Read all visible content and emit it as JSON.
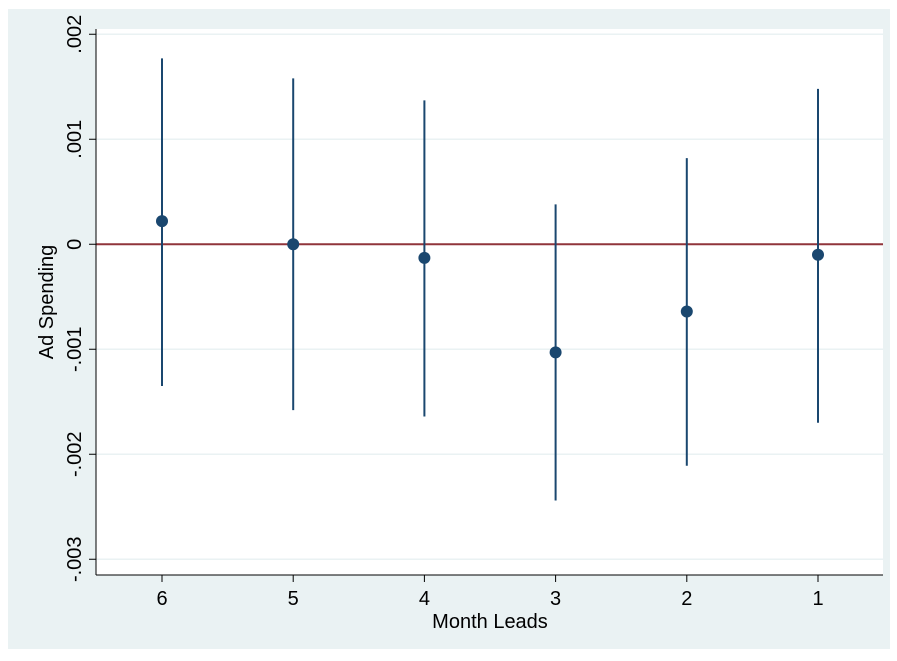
{
  "chart_data": {
    "type": "scatter",
    "subtype": "coefficient-plot-with-error-bars",
    "title": "",
    "xlabel": "Month Leads",
    "ylabel": "Ad Spending",
    "categories": [
      "6",
      "5",
      "4",
      "3",
      "2",
      "1"
    ],
    "y_ticks": [
      -0.003,
      -0.002,
      -0.001,
      0,
      0.001,
      0.002
    ],
    "y_tick_labels": [
      "-.003",
      "-.002",
      "-.001",
      "0",
      ".001",
      ".002"
    ],
    "ylim": [
      -0.00315,
      0.00205
    ],
    "grid": true,
    "reference_line": 0,
    "series": [
      {
        "points": [
          {
            "x": "6",
            "estimate": 0.00022,
            "lower": -0.00135,
            "upper": 0.00177
          },
          {
            "x": "5",
            "estimate": 0.0,
            "lower": -0.00158,
            "upper": 0.00158
          },
          {
            "x": "4",
            "estimate": -0.00013,
            "lower": -0.00164,
            "upper": 0.00137
          },
          {
            "x": "3",
            "estimate": -0.00103,
            "lower": -0.00244,
            "upper": 0.00038
          },
          {
            "x": "2",
            "estimate": -0.00064,
            "lower": -0.00211,
            "upper": 0.00082
          },
          {
            "x": "1",
            "estimate": -0.0001,
            "lower": -0.0017,
            "upper": 0.00148
          }
        ]
      }
    ],
    "colors": {
      "outer_background": "#eaf2f3",
      "plot_background": "#ffffff",
      "grid": "#eaf2f3",
      "series": "#1a476f",
      "reference_line": "#90353b",
      "axis": "#000000"
    }
  }
}
